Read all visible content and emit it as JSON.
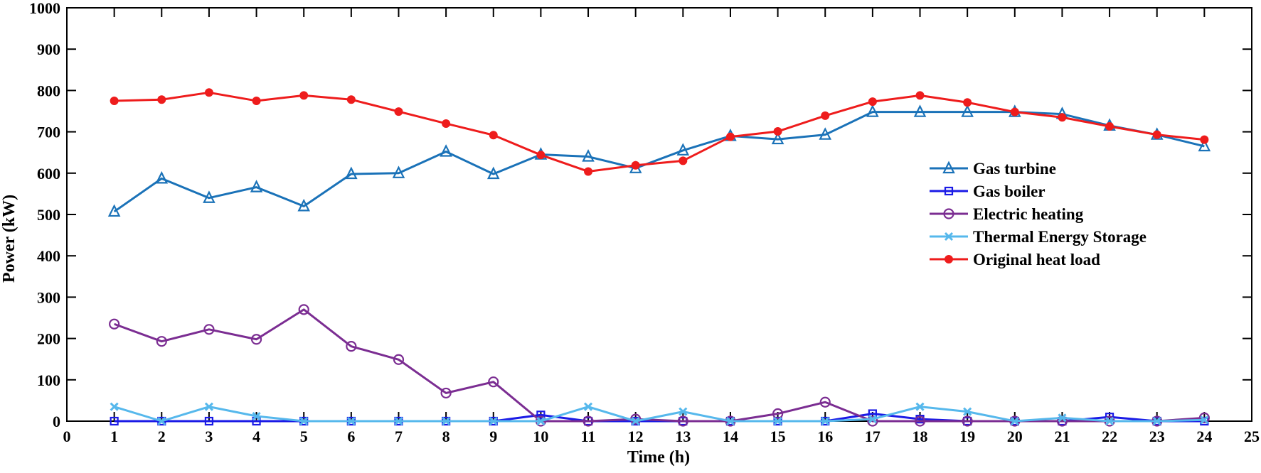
{
  "chart_data": {
    "type": "line",
    "xlabel": "Time (h)",
    "ylabel": "Power (kW)",
    "xlim": [
      0,
      25
    ],
    "ylim": [
      0,
      1000
    ],
    "xticks": [
      0,
      1,
      2,
      3,
      4,
      5,
      6,
      7,
      8,
      9,
      10,
      11,
      12,
      13,
      14,
      15,
      16,
      17,
      18,
      19,
      20,
      21,
      22,
      23,
      24,
      25
    ],
    "yticks": [
      0,
      100,
      200,
      300,
      400,
      500,
      600,
      700,
      800,
      900,
      1000
    ],
    "grid": false,
    "legend_position": "right",
    "x": [
      1,
      2,
      3,
      4,
      5,
      6,
      7,
      8,
      9,
      10,
      11,
      12,
      13,
      14,
      15,
      16,
      17,
      18,
      19,
      20,
      21,
      22,
      23,
      24
    ],
    "series": [
      {
        "name": "Gas turbine",
        "color": "#1a72b8",
        "marker": "triangle",
        "values": [
          507,
          587,
          540,
          566,
          520,
          598,
          600,
          652,
          598,
          645,
          640,
          612,
          655,
          690,
          682,
          693,
          748,
          748,
          748,
          748,
          743,
          715,
          693,
          665
        ]
      },
      {
        "name": "Gas boiler",
        "color": "#1a1ae6",
        "marker": "square",
        "values": [
          0,
          0,
          0,
          0,
          0,
          0,
          0,
          0,
          0,
          15,
          0,
          0,
          0,
          0,
          0,
          0,
          18,
          5,
          0,
          0,
          0,
          10,
          0,
          0
        ]
      },
      {
        "name": "Electric heating",
        "color": "#7b2d92",
        "marker": "circle",
        "values": [
          235,
          193,
          222,
          198,
          270,
          181,
          149,
          68,
          95,
          0,
          0,
          5,
          0,
          0,
          18,
          46,
          0,
          0,
          0,
          0,
          0,
          0,
          0,
          8
        ]
      },
      {
        "name": "Thermal Energy Storage",
        "color": "#56b8ec",
        "marker": "x",
        "values": [
          35,
          0,
          35,
          12,
          0,
          0,
          0,
          0,
          0,
          0,
          35,
          0,
          23,
          0,
          0,
          0,
          5,
          35,
          23,
          0,
          8,
          0,
          0,
          3
        ]
      },
      {
        "name": "Original heat load",
        "color": "#ee1c1c",
        "marker": "dot",
        "values": [
          775,
          778,
          795,
          775,
          788,
          778,
          749,
          720,
          692,
          644,
          604,
          619,
          630,
          688,
          701,
          739,
          773,
          788,
          771,
          748,
          735,
          713,
          693,
          681
        ]
      }
    ]
  }
}
